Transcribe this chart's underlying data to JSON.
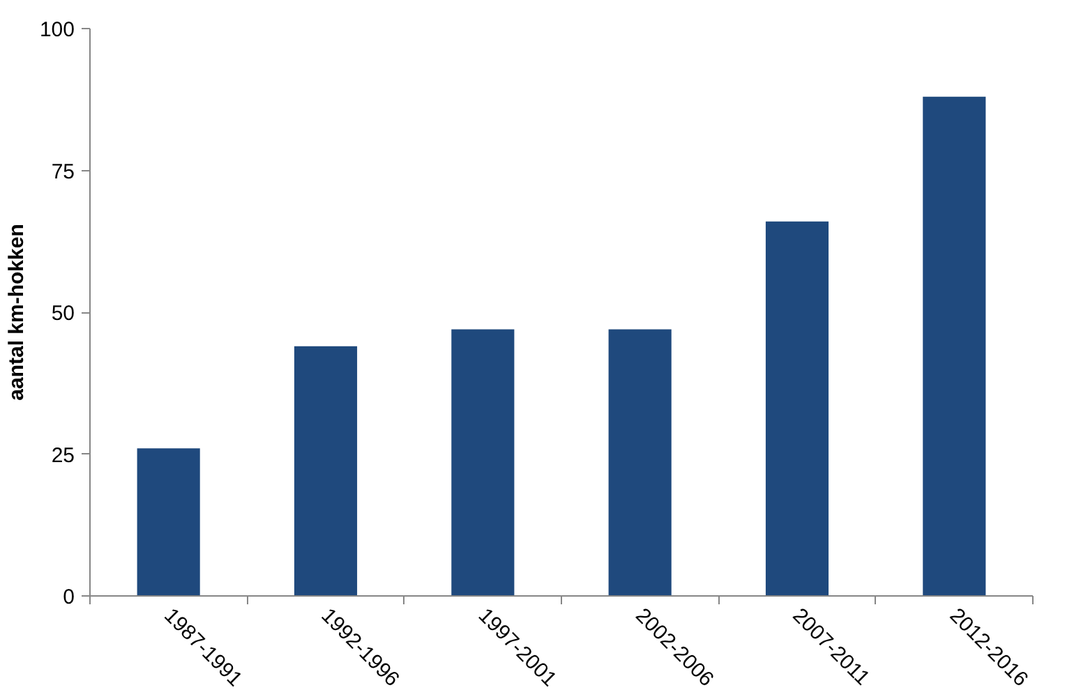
{
  "chart_data": {
    "type": "bar",
    "ylabel": "aantal km-hokken",
    "categories": [
      "1987-1991",
      "1992-1996",
      "1997-2001",
      "2002-2006",
      "2007-2011",
      "2012-2016"
    ],
    "values": [
      26,
      44,
      47,
      47,
      66,
      88
    ],
    "color": "#1f497d",
    "ylim": [
      0,
      100
    ],
    "yticks": [
      0,
      25,
      50,
      75,
      100
    ],
    "grid": false
  }
}
